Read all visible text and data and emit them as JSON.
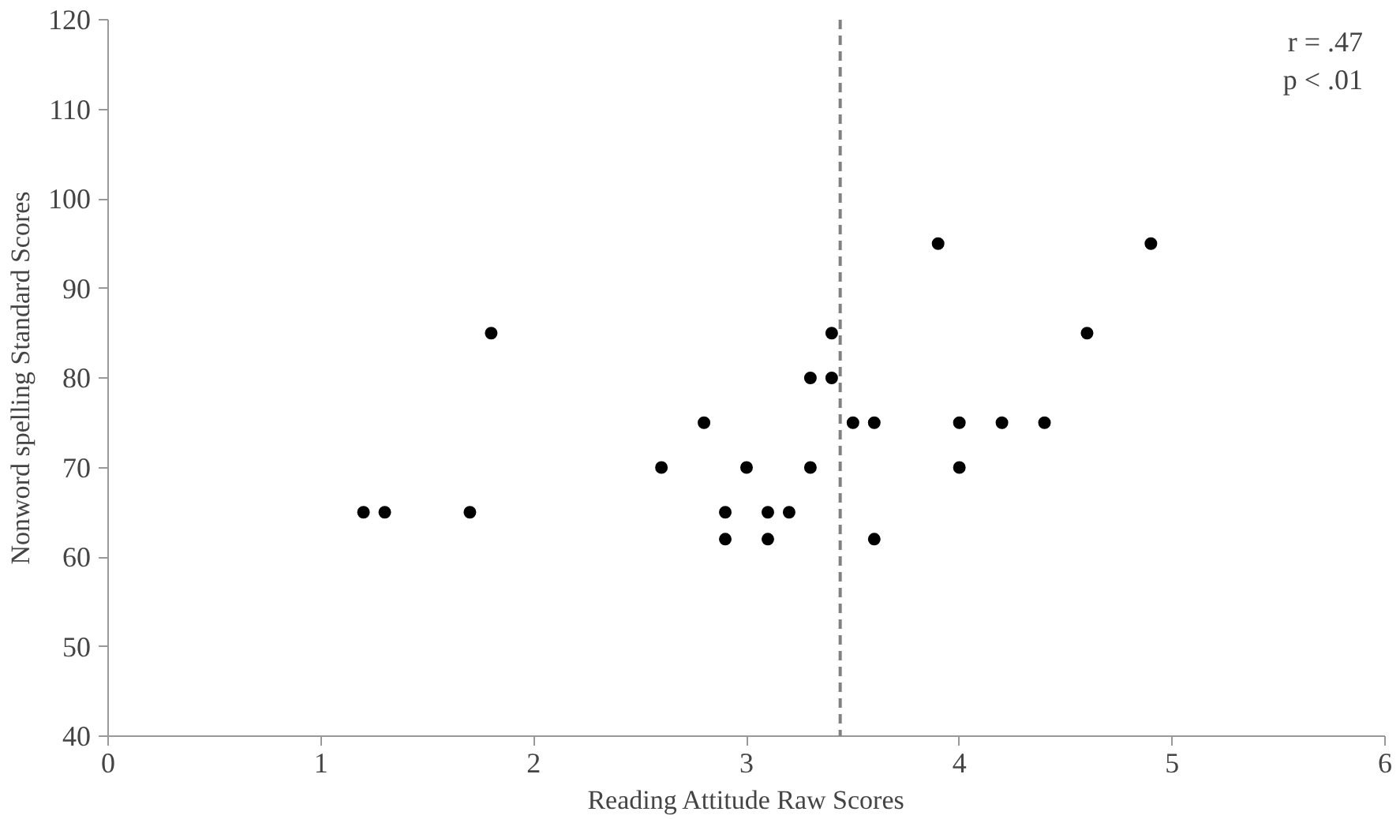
{
  "chart_data": {
    "type": "scatter",
    "xlabel": "Reading Attitude Raw Scores",
    "ylabel": "Nonword spelling Standard Scores",
    "annotations": [
      "r = .47",
      "p < .01"
    ],
    "x": [
      1.2,
      1.3,
      1.7,
      1.8,
      2.6,
      2.8,
      2.9,
      2.9,
      3.0,
      3.1,
      3.1,
      3.2,
      3.3,
      3.3,
      3.4,
      3.4,
      3.5,
      3.6,
      3.6,
      3.9,
      4.0,
      4.0,
      4.2,
      4.4,
      4.6,
      4.9
    ],
    "series": [
      {
        "color": "#000000",
        "values": [
          65,
          65,
          65,
          85,
          70,
          75,
          65,
          62,
          70,
          65,
          62,
          65,
          70,
          80,
          80,
          85,
          75,
          75,
          62,
          95,
          75,
          70,
          75,
          75,
          85,
          95
        ]
      }
    ],
    "xlim": [
      0,
      6
    ],
    "ylim": [
      40,
      120
    ],
    "xticks": [
      0,
      1,
      2,
      3,
      4,
      5,
      6
    ],
    "yticks": [
      40,
      50,
      60,
      70,
      80,
      90,
      100,
      110,
      120
    ],
    "ref_lines": [
      {
        "axis": "x",
        "value": 3.44,
        "color": "#808080",
        "line_style": "dashed"
      }
    ],
    "grid": false,
    "marker": "circle"
  }
}
